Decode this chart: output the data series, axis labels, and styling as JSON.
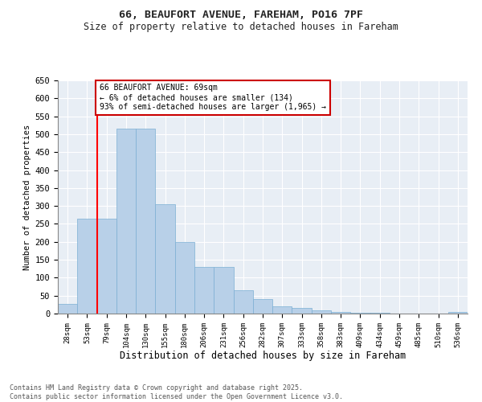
{
  "title_line1": "66, BEAUFORT AVENUE, FAREHAM, PO16 7PF",
  "title_line2": "Size of property relative to detached houses in Fareham",
  "xlabel": "Distribution of detached houses by size in Fareham",
  "ylabel": "Number of detached properties",
  "categories": [
    "28sqm",
    "53sqm",
    "79sqm",
    "104sqm",
    "130sqm",
    "155sqm",
    "180sqm",
    "206sqm",
    "231sqm",
    "256sqm",
    "282sqm",
    "307sqm",
    "333sqm",
    "358sqm",
    "383sqm",
    "409sqm",
    "434sqm",
    "459sqm",
    "485sqm",
    "510sqm",
    "536sqm"
  ],
  "values": [
    28,
    265,
    265,
    515,
    515,
    305,
    200,
    130,
    130,
    65,
    40,
    20,
    15,
    10,
    5,
    3,
    2,
    1,
    1,
    1,
    5
  ],
  "bar_color": "#b8d0e8",
  "bar_edgecolor": "#7bafd4",
  "red_line_x": 1.5,
  "annotation_text": "66 BEAUFORT AVENUE: 69sqm\n← 6% of detached houses are smaller (134)\n93% of semi-detached houses are larger (1,965) →",
  "annotation_box_color": "#ffffff",
  "annotation_box_edgecolor": "#cc0000",
  "ylim": [
    0,
    650
  ],
  "yticks": [
    0,
    50,
    100,
    150,
    200,
    250,
    300,
    350,
    400,
    450,
    500,
    550,
    600,
    650
  ],
  "background_color": "#e8eef5",
  "footer_line1": "Contains HM Land Registry data © Crown copyright and database right 2025.",
  "footer_line2": "Contains public sector information licensed under the Open Government Licence v3.0."
}
